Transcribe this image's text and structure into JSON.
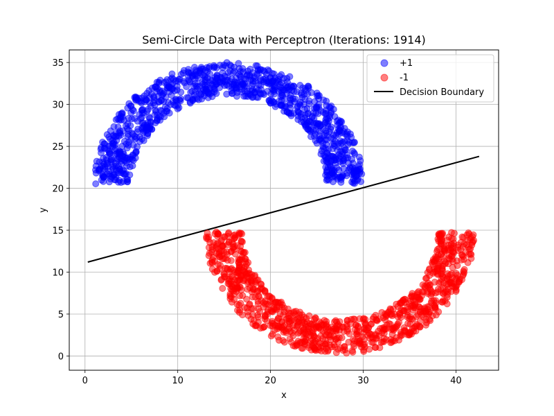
{
  "chart_data": {
    "type": "scatter",
    "title": "Semi-Circle Data with Perceptron (Iterations: 1914)",
    "xlabel": "x",
    "ylabel": "y",
    "xlim": [
      -1.7,
      44.6
    ],
    "ylim": [
      -1.7,
      36.5
    ],
    "xticks": [
      0,
      10,
      20,
      30,
      40
    ],
    "yticks": [
      0,
      5,
      10,
      15,
      20,
      25,
      30,
      35
    ],
    "grid": true,
    "legend": {
      "placement": "upper right",
      "entries": [
        "+1",
        "-1",
        "Decision Boundary"
      ]
    },
    "series": [
      {
        "name": "+1",
        "kind": "scatter",
        "color": "#0000ff",
        "alpha": 0.5,
        "shape": "upper semi-ring",
        "center": [
          15.5,
          20.5
        ],
        "radius_range": [
          10.5,
          14.5
        ],
        "angle_range_deg": [
          0,
          180
        ],
        "count": 1000
      },
      {
        "name": "-1",
        "kind": "scatter",
        "color": "#ff0000",
        "alpha": 0.5,
        "shape": "lower semi-ring",
        "center": [
          27.5,
          14.8
        ],
        "radius_range": [
          10.5,
          14.5
        ],
        "angle_range_deg": [
          180,
          360
        ],
        "count": 1000
      },
      {
        "name": "Decision Boundary",
        "kind": "line",
        "color": "#000000",
        "x": [
          0.3,
          42.5
        ],
        "y": [
          11.2,
          23.8
        ]
      }
    ]
  }
}
